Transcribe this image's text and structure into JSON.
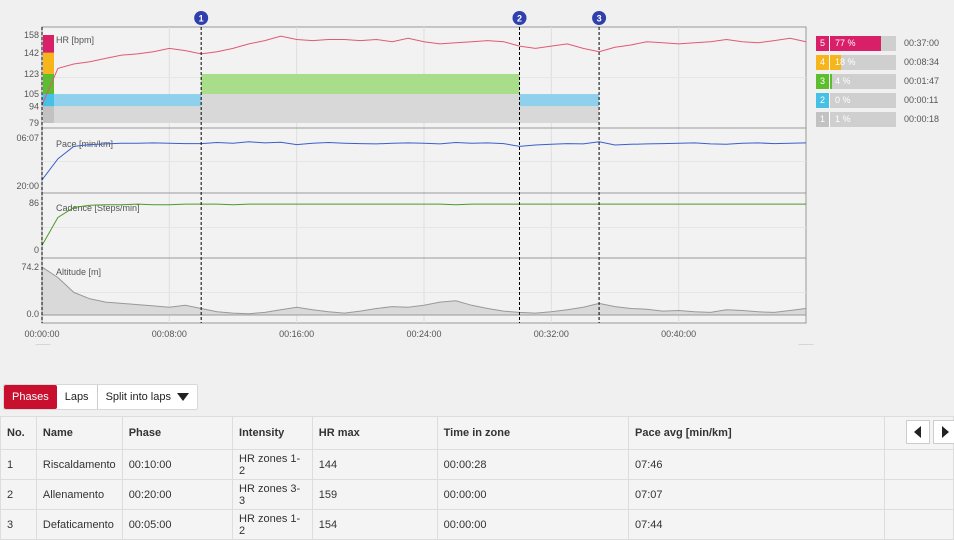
{
  "chart_data": [
    {
      "type": "area",
      "title": "HR [bpm]",
      "yticks": [
        "158",
        "142",
        "123",
        "105",
        "94",
        "79"
      ],
      "ylim": [
        79,
        158
      ],
      "x_minutes": [
        0,
        1,
        2,
        3,
        4,
        5,
        6,
        7,
        8,
        9,
        10,
        11,
        12,
        13,
        14,
        15,
        16,
        17,
        18,
        19,
        20,
        21,
        22,
        23,
        24,
        25,
        26,
        27,
        28,
        29,
        30,
        31,
        32,
        33,
        34,
        35,
        36,
        37,
        38,
        39,
        40,
        41,
        42,
        43,
        44,
        45,
        46,
        47,
        48
      ],
      "values": [
        95,
        128,
        132,
        134,
        137,
        140,
        141,
        143,
        146,
        144,
        141,
        143,
        146,
        150,
        153,
        157,
        154,
        153,
        154,
        154,
        153,
        154,
        152,
        155,
        152,
        150,
        151,
        152,
        153,
        152,
        148,
        146,
        148,
        150,
        146,
        143,
        147,
        149,
        152,
        151,
        150,
        151,
        152,
        154,
        152,
        151,
        153,
        155,
        152
      ],
      "zone_bands": [
        {
          "start": 0,
          "end": 10,
          "low": 94,
          "high": 105,
          "zone": 2
        },
        {
          "start": 10,
          "end": 30,
          "low": 105,
          "high": 123,
          "zone": 3
        },
        {
          "start": 30,
          "end": 35,
          "low": 94,
          "high": 105,
          "zone": 2
        }
      ]
    },
    {
      "type": "line",
      "title": "Pace [min/km]",
      "yticks": [
        "06:07",
        "20:00"
      ],
      "ylim": [
        "20:00",
        "06:07"
      ],
      "x_minutes": [
        0,
        1,
        2,
        3,
        4,
        5,
        6,
        7,
        8,
        9,
        10,
        11,
        12,
        13,
        14,
        15,
        16,
        17,
        18,
        19,
        20,
        21,
        22,
        23,
        24,
        25,
        26,
        27,
        28,
        29,
        30,
        31,
        32,
        33,
        34,
        35,
        36,
        37,
        38,
        39,
        40,
        41,
        42,
        43,
        44,
        45,
        46,
        47,
        48
      ],
      "values_min": [
        18,
        12,
        8.5,
        8,
        7.8,
        7.6,
        7.6,
        7.5,
        7.6,
        7.7,
        7.7,
        7.4,
        7.6,
        7.2,
        7.5,
        7.3,
        8,
        7.6,
        7.4,
        7.6,
        7.7,
        7.8,
        7.6,
        7.5,
        7.6,
        7.8,
        7.4,
        7.6,
        7.5,
        7.7,
        8.5,
        8.1,
        7.9,
        7.7,
        7.8,
        7.2,
        8.1,
        7.9,
        7.8,
        7.7,
        7.6,
        7.5,
        7.8,
        7.9,
        7.6,
        7.5,
        7.7,
        7.6,
        7.5
      ]
    },
    {
      "type": "line",
      "title": "Cadence [Steps/min]",
      "yticks": [
        "86",
        "0"
      ],
      "ylim": [
        0,
        86
      ],
      "x_minutes": [
        0,
        1,
        2,
        3,
        4,
        5,
        6,
        7,
        8,
        9,
        10,
        11,
        12,
        13,
        14,
        15,
        16,
        17,
        18,
        19,
        20,
        21,
        22,
        23,
        24,
        25,
        26,
        27,
        28,
        29,
        30,
        31,
        32,
        33,
        34,
        35,
        36,
        37,
        38,
        39,
        40,
        41,
        42,
        43,
        44,
        45,
        46,
        47,
        48
      ],
      "values": [
        10,
        60,
        78,
        82,
        83,
        83,
        84,
        83,
        83,
        84,
        84,
        84,
        83,
        84,
        84,
        84,
        84,
        84,
        84,
        84,
        84,
        84,
        84,
        84,
        84,
        84,
        83,
        84,
        84,
        84,
        84,
        84,
        84,
        84,
        84,
        84,
        84,
        84,
        84,
        84,
        84,
        84,
        84,
        84,
        84,
        84,
        84,
        84,
        84
      ]
    },
    {
      "type": "area",
      "title": "Altitude [m]",
      "yticks": [
        "74.2",
        "0.0"
      ],
      "ylim": [
        0,
        74.2
      ],
      "x_minutes": [
        0,
        1,
        2,
        3,
        4,
        5,
        6,
        7,
        8,
        9,
        10,
        11,
        12,
        13,
        14,
        15,
        16,
        17,
        18,
        19,
        20,
        21,
        22,
        23,
        24,
        25,
        26,
        27,
        28,
        29,
        30,
        31,
        32,
        33,
        34,
        35,
        36,
        37,
        38,
        39,
        40,
        41,
        42,
        43,
        44,
        45,
        46,
        47,
        48
      ],
      "values": [
        74,
        58,
        35,
        25,
        20,
        18,
        16,
        14,
        12,
        15,
        10,
        5,
        3,
        2,
        4,
        8,
        12,
        8,
        5,
        3,
        6,
        10,
        13,
        12,
        15,
        20,
        22,
        15,
        10,
        6,
        4,
        3,
        5,
        8,
        12,
        18,
        13,
        10,
        9,
        6,
        7,
        5,
        4,
        8,
        7,
        5,
        4,
        7,
        10
      ]
    },
    {
      "type": "bar",
      "title": "HR zones",
      "categories": [
        "5",
        "4",
        "3",
        "2",
        "1"
      ],
      "values_percent": [
        77,
        18,
        4,
        0,
        1
      ],
      "labels": [
        "77 %",
        "18 %",
        "4 %",
        "0 %",
        "1 %"
      ],
      "times": [
        "00:37:00",
        "00:08:34",
        "00:01:47",
        "00:00:11",
        "00:00:18"
      ],
      "colors": [
        "#d81f68",
        "#f5b51b",
        "#5cbd2f",
        "#47c0e6",
        "#c2c2c2"
      ]
    }
  ],
  "x_axis": {
    "labels": [
      "00:00:00",
      "00:08:00",
      "00:16:00",
      "00:24:00",
      "00:32:00",
      "00:40:00"
    ]
  },
  "phase_markers": [
    "1",
    "2",
    "3"
  ],
  "tabs": {
    "phases": "Phases",
    "laps": "Laps",
    "split": "Split into laps"
  },
  "table": {
    "headers": [
      "No.",
      "Name",
      "Phase",
      "Intensity",
      "HR max",
      "Time in zone",
      "Pace avg [min/km]"
    ],
    "rows": [
      [
        "1",
        "Riscaldamento",
        "00:10:00",
        "HR zones 1-2",
        "144",
        "00:00:28",
        "07:46"
      ],
      [
        "2",
        "Allenamento",
        "00:20:00",
        "HR zones 3-3",
        "159",
        "00:00:00",
        "07:07"
      ],
      [
        "3",
        "Defaticamento",
        "00:05:00",
        "HR zones 1-2",
        "154",
        "00:00:00",
        "07:44"
      ]
    ]
  },
  "colors": {
    "accent": "#c8102e",
    "hr_line": "#e05a73",
    "pace_line": "#3a5fcd",
    "cadence_line": "#4e9a2a",
    "altitude_fill": "#d9d9d9",
    "marker": "#2f3fae"
  }
}
